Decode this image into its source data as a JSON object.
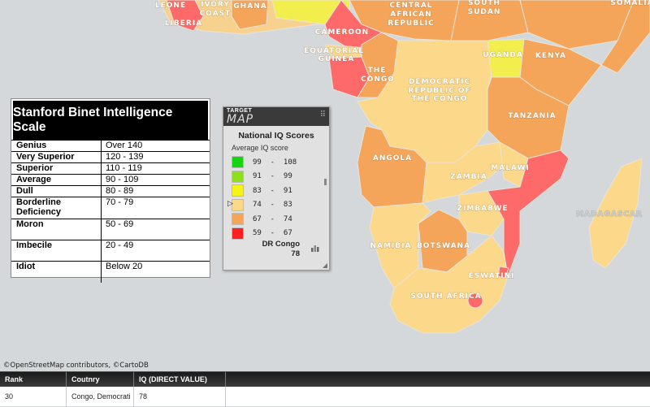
{
  "map": {
    "colors": {
      "ocean": "#d4d8da",
      "c59_67": "#fe6a6a",
      "c67_74": "#f5a55a",
      "c74_83": "#fbd88a",
      "c83_91": "#f2ee4e",
      "border": "#e9e4d8",
      "other": "#f7d28e"
    },
    "labels": {
      "leone": "LEONE",
      "ivory_coast_1": "IVORY",
      "ivory_coast_2": "COAST",
      "ghana": "GHANA",
      "car_1": "CENTRAL",
      "car_2": "AFRICAN",
      "car_3": "REPUBLIC",
      "south_sudan_1": "SOUTH",
      "south_sudan_2": "SUDAN",
      "somalia": "SOMALIA",
      "liberia": "LIBERIA",
      "cameroon": "CAMEROON",
      "eq_guinea_1": "EQUATORIAL",
      "eq_guinea_2": "GUINEA",
      "the_congo_1": "THE",
      "the_congo_2": "CONGO",
      "drc_1": "DEMOCRATIC",
      "drc_2": "REPUBLIC OF",
      "drc_3": "THE CONGO",
      "uganda": "UGANDA",
      "kenya": "KENYA",
      "tanzania": "TANZANIA",
      "angola": "ANGOLA",
      "zambia": "ZAMBIA",
      "malawi": "MALAWI",
      "zimbabwe": "ZIMBABWE",
      "namibia": "NAMIBIA",
      "botswana": "BOTSWANA",
      "madagascar": "MADAGASCAR",
      "eswatini": "ESWATINI",
      "south_africa": "SOUTH AFRICA"
    }
  },
  "stanford": {
    "title": "Stanford Binet Intelligence Scale",
    "rows": [
      {
        "label": "Genius",
        "range": "Over 140"
      },
      {
        "label": "Very Superior",
        "range": "120 - 139"
      },
      {
        "label": "Superior",
        "range": "110 - 119"
      },
      {
        "label": "Average",
        "range": "90 - 109"
      },
      {
        "label": "Dull",
        "range": "80 - 89"
      },
      {
        "label": "Borderline Deficiency",
        "range": "70 - 79"
      },
      {
        "label": "Moron",
        "range": "50 - 69"
      },
      {
        "label": "Imbecile",
        "range": "20 - 49"
      },
      {
        "label": "Idiot",
        "range": "Below 20"
      }
    ]
  },
  "legend": {
    "logo_top": "TARGET",
    "logo_bottom": "MAP",
    "grip": "⠿",
    "title": "National IQ Scores",
    "subtitle": "Average IQ score",
    "items": [
      {
        "label": "99  -  108",
        "color": "#16d40f"
      },
      {
        "label": "91  -  99",
        "color": "#8ee01e"
      },
      {
        "label": "83  -  91",
        "color": "#f5f31a"
      },
      {
        "label": "74  -  83",
        "color": "#fbd88a"
      },
      {
        "label": "67  -  74",
        "color": "#f5a55a"
      },
      {
        "label": "59  -  67",
        "color": "#fe2020"
      }
    ],
    "pointer": "▷",
    "selected_name": "DR Congo",
    "selected_value": "78",
    "resize_glyph": "◢"
  },
  "attribution": "©OpenStreetMap contributors, ©CartoDB",
  "table": {
    "headers": [
      "Rank",
      "Coutnry",
      "IQ (DIRECT VALUE)",
      ""
    ],
    "rows": [
      [
        "30",
        "Congo, Democrati",
        "78",
        ""
      ]
    ]
  }
}
